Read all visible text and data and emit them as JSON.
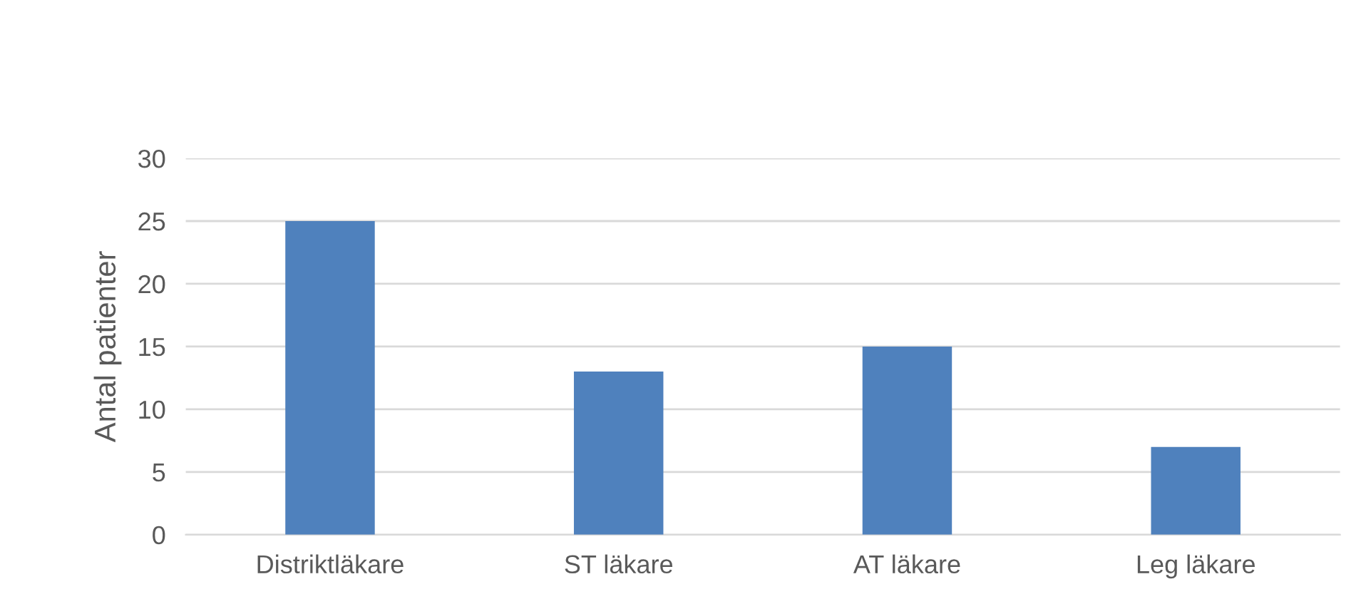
{
  "chart_data": {
    "type": "bar",
    "ylabel": "Antal patienter",
    "categories": [
      "Distriktläkare",
      "ST läkare",
      "AT läkare",
      "Leg läkare"
    ],
    "values": [
      25,
      13,
      15,
      7
    ],
    "color": "#4f81bd",
    "ylim": [
      0,
      30
    ],
    "yticks": [
      0,
      5,
      10,
      15,
      20,
      25,
      30
    ],
    "grid": "y",
    "legend": false
  }
}
